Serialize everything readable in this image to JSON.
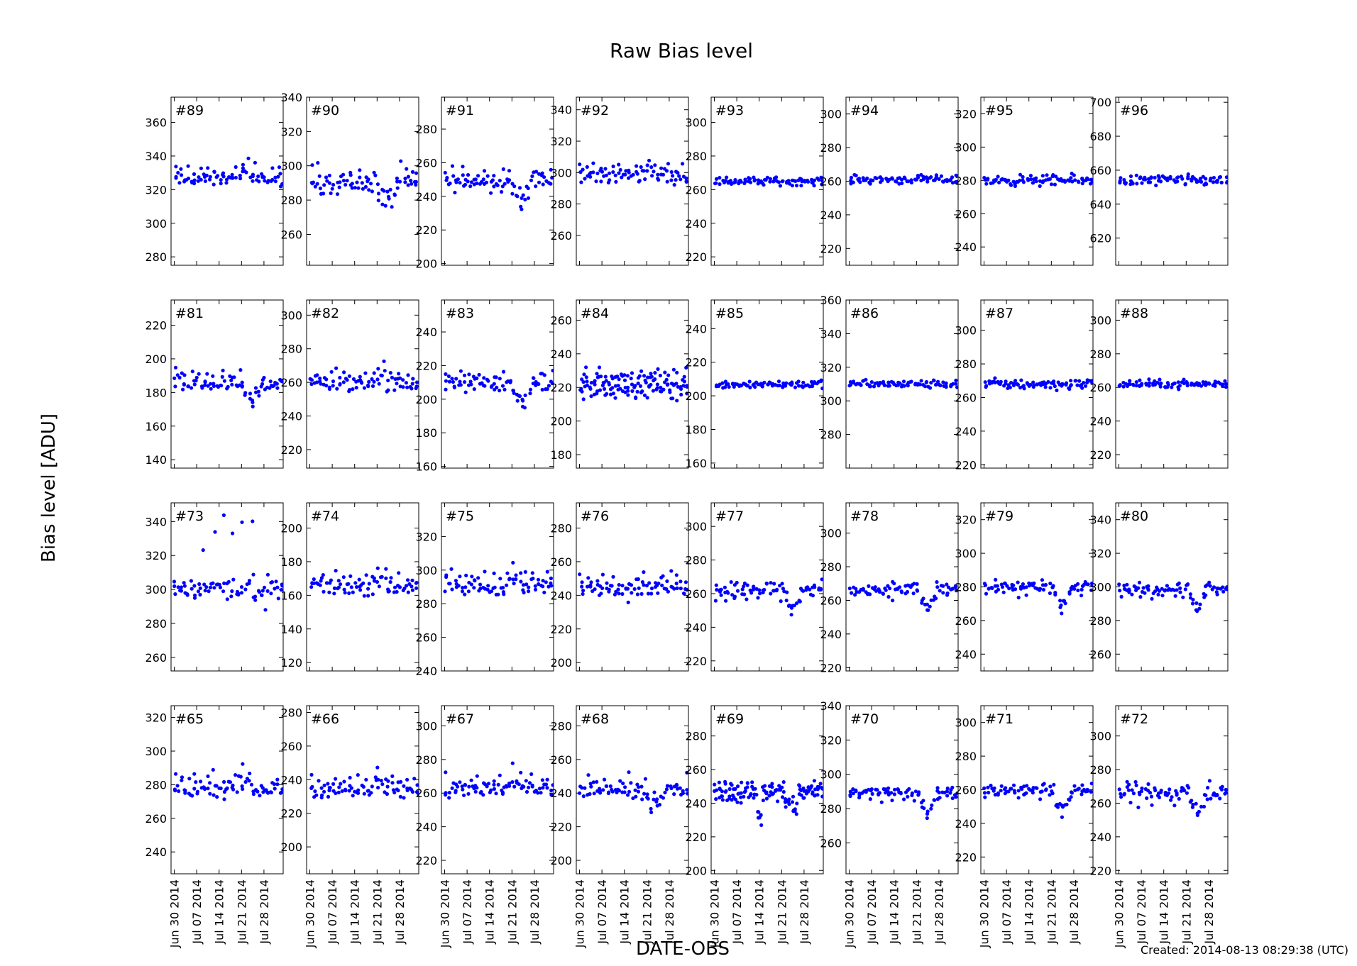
{
  "figure": {
    "title": "Raw Bias level",
    "ylabel": "Bias level [ADU]",
    "xlabel": "DATE-OBS",
    "created": "Created: 2014-08-13 08:29:38 (UTC)",
    "marker_color": "#0000ff"
  },
  "chart_data": {
    "type": "scatter",
    "x_tick_labels": [
      "Jun 30 2014",
      "Jul 07 2014",
      "Jul 14 2014",
      "Jul 21 2014",
      "Jul 28 2014"
    ],
    "x_ticks": [
      "2014-06-30",
      "2014-07-07",
      "2014-07-14",
      "2014-07-21",
      "2014-07-28"
    ],
    "x_range": [
      "2014-06-29",
      "2014-08-03"
    ],
    "grid": false,
    "layout": "4 rows x 8 columns",
    "panels": [
      {
        "label": "#89",
        "ylim": [
          275,
          375
        ],
        "yticks": [
          280,
          300,
          320,
          340,
          360
        ],
        "profile": "A",
        "level": 326,
        "spread": 2.5
      },
      {
        "label": "#90",
        "ylim": [
          242,
          340
        ],
        "yticks": [
          260,
          280,
          300,
          320,
          340
        ],
        "profile": "B",
        "level": 290,
        "spread": 4
      },
      {
        "label": "#91",
        "ylim": [
          199,
          299
        ],
        "yticks": [
          200,
          220,
          240,
          260,
          280
        ],
        "profile": "B",
        "level": 249,
        "spread": 3.5
      },
      {
        "label": "#92",
        "ylim": [
          241,
          348
        ],
        "yticks": [
          260,
          280,
          300,
          320,
          340
        ],
        "profile": "A",
        "level": 298,
        "spread": 3
      },
      {
        "label": "#93",
        "ylim": [
          215,
          315
        ],
        "yticks": [
          220,
          240,
          260,
          280,
          300
        ],
        "profile": "F",
        "level": 265,
        "spread": 1.5
      },
      {
        "label": "#94",
        "ylim": [
          210,
          310
        ],
        "yticks": [
          220,
          240,
          260,
          280,
          300
        ],
        "profile": "F",
        "level": 261,
        "spread": 1.5
      },
      {
        "label": "#95",
        "ylim": [
          229,
          330
        ],
        "yticks": [
          240,
          260,
          280,
          300,
          320
        ],
        "profile": "F",
        "level": 280,
        "spread": 2
      },
      {
        "label": "#96",
        "ylim": [
          604,
          703
        ],
        "yticks": [
          620,
          640,
          660,
          680,
          700
        ],
        "profile": "F",
        "level": 654,
        "spread": 2
      },
      {
        "label": "#81",
        "ylim": [
          135,
          235
        ],
        "yticks": [
          140,
          160,
          180,
          200,
          220
        ],
        "profile": "B",
        "level": 185,
        "spread": 3
      },
      {
        "label": "#82",
        "ylim": [
          209,
          309
        ],
        "yticks": [
          220,
          240,
          260,
          280,
          300
        ],
        "profile": "A",
        "level": 259,
        "spread": 3
      },
      {
        "label": "#83",
        "ylim": [
          159,
          259
        ],
        "yticks": [
          160,
          180,
          200,
          220,
          240
        ],
        "profile": "B",
        "level": 209,
        "spread": 3
      },
      {
        "label": "#84",
        "ylim": [
          172,
          272
        ],
        "yticks": [
          180,
          200,
          220,
          240,
          260
        ],
        "profile": "D",
        "level": 222,
        "spread": 4
      },
      {
        "label": "#85",
        "ylim": [
          157,
          257
        ],
        "yticks": [
          160,
          180,
          200,
          220,
          240
        ],
        "profile": "F",
        "level": 207,
        "spread": 1.5
      },
      {
        "label": "#86",
        "ylim": [
          260,
          360
        ],
        "yticks": [
          280,
          300,
          320,
          340,
          360
        ],
        "profile": "F",
        "level": 310,
        "spread": 1.5
      },
      {
        "label": "#87",
        "ylim": [
          218,
          318
        ],
        "yticks": [
          220,
          240,
          260,
          280,
          300
        ],
        "profile": "F",
        "level": 268,
        "spread": 2
      },
      {
        "label": "#88",
        "ylim": [
          212,
          312
        ],
        "yticks": [
          220,
          240,
          260,
          280,
          300
        ],
        "profile": "F",
        "level": 262,
        "spread": 1.5
      },
      {
        "label": "#73",
        "ylim": [
          252,
          351
        ],
        "yticks": [
          260,
          280,
          300,
          320,
          340
        ],
        "profile": "C",
        "level": 301,
        "spread": 4
      },
      {
        "label": "#74",
        "ylim": [
          115,
          215
        ],
        "yticks": [
          120,
          140,
          160,
          180,
          200
        ],
        "profile": "A",
        "level": 165,
        "spread": 3
      },
      {
        "label": "#75",
        "ylim": [
          240,
          340
        ],
        "yticks": [
          240,
          260,
          280,
          300,
          320
        ],
        "profile": "A",
        "level": 290,
        "spread": 3
      },
      {
        "label": "#76",
        "ylim": [
          195,
          295
        ],
        "yticks": [
          200,
          220,
          240,
          260,
          280
        ],
        "profile": "E",
        "level": 245,
        "spread": 3
      },
      {
        "label": "#77",
        "ylim": [
          214,
          314
        ],
        "yticks": [
          220,
          240,
          260,
          280,
          300
        ],
        "profile": "G",
        "level": 263,
        "spread": 3
      },
      {
        "label": "#78",
        "ylim": [
          218,
          318
        ],
        "yticks": [
          220,
          240,
          260,
          280,
          300
        ],
        "profile": "G",
        "level": 267,
        "spread": 2.5
      },
      {
        "label": "#79",
        "ylim": [
          230,
          330
        ],
        "yticks": [
          240,
          260,
          280,
          300,
          320
        ],
        "profile": "G",
        "level": 280,
        "spread": 2
      },
      {
        "label": "#80",
        "ylim": [
          250,
          350
        ],
        "yticks": [
          260,
          280,
          300,
          320,
          340
        ],
        "profile": "G",
        "level": 299,
        "spread": 2
      },
      {
        "label": "#65",
        "ylim": [
          227,
          327
        ],
        "yticks": [
          240,
          260,
          280,
          300,
          320
        ],
        "profile": "A",
        "level": 277,
        "spread": 3
      },
      {
        "label": "#66",
        "ylim": [
          184,
          284
        ],
        "yticks": [
          200,
          220,
          240,
          260,
          280
        ],
        "profile": "A",
        "level": 234,
        "spread": 3
      },
      {
        "label": "#67",
        "ylim": [
          212,
          312
        ],
        "yticks": [
          220,
          240,
          260,
          280,
          300
        ],
        "profile": "A",
        "level": 262,
        "spread": 3
      },
      {
        "label": "#68",
        "ylim": [
          192,
          292
        ],
        "yticks": [
          200,
          220,
          240,
          260,
          280
        ],
        "profile": "B",
        "level": 242,
        "spread": 3
      },
      {
        "label": "#69",
        "ylim": [
          198,
          298
        ],
        "yticks": [
          200,
          220,
          240,
          260,
          280
        ],
        "profile": "H",
        "level": 247,
        "spread": 4
      },
      {
        "label": "#70",
        "ylim": [
          242,
          340
        ],
        "yticks": [
          260,
          280,
          300,
          320,
          340
        ],
        "profile": "G",
        "level": 290,
        "spread": 2
      },
      {
        "label": "#71",
        "ylim": [
          210,
          310
        ],
        "yticks": [
          220,
          240,
          260,
          280,
          300
        ],
        "profile": "G",
        "level": 260,
        "spread": 2
      },
      {
        "label": "#72",
        "ylim": [
          218,
          318
        ],
        "yticks": [
          220,
          240,
          260,
          280,
          300
        ],
        "profile": "G",
        "level": 267,
        "spread": 3
      }
    ]
  }
}
